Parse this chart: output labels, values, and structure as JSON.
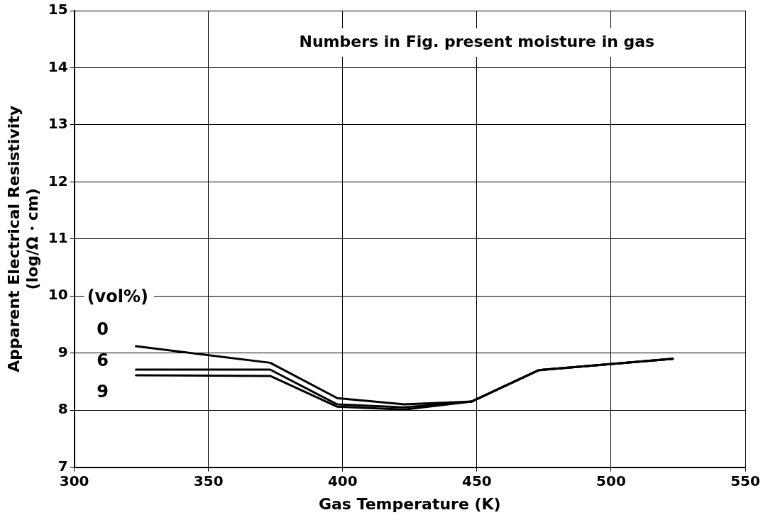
{
  "chart_data": {
    "type": "line",
    "xlabel": "Gas Temperature (K)",
    "ylabel": "Apparent Electrical Resistivity\n(log/Ω・cm)",
    "legend_title": "(vol%)",
    "annotations": [
      "Numbers in Fig. present moisture in gas"
    ],
    "x": [
      323,
      373,
      398,
      423,
      448,
      473,
      523
    ],
    "series": [
      {
        "name": "0",
        "color": "#000000",
        "values": [
          9.12,
          8.83,
          8.21,
          8.1,
          8.15,
          8.7,
          8.9
        ]
      },
      {
        "name": "6",
        "color": "#000000",
        "values": [
          8.71,
          8.71,
          8.1,
          8.05,
          8.15,
          8.7,
          8.9
        ]
      },
      {
        "name": "9",
        "color": "#000000",
        "values": [
          8.61,
          8.6,
          8.06,
          8.01,
          8.15,
          8.7,
          8.9
        ]
      }
    ],
    "xlim": [
      300,
      550
    ],
    "xticks": [
      300,
      350,
      400,
      450,
      500,
      550
    ],
    "ylim": [
      7,
      15
    ],
    "yticks": [
      7,
      8,
      9,
      10,
      11,
      12,
      13,
      14,
      15
    ],
    "grid": true,
    "legend": false,
    "marker": "none",
    "line_style": "solid"
  }
}
